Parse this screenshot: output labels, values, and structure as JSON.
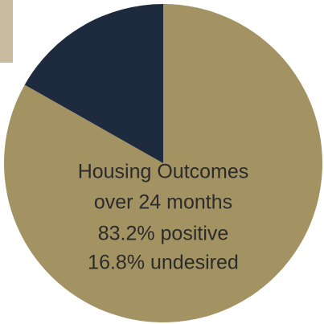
{
  "chart_data": {
    "type": "pie",
    "title": "Housing Outcomes",
    "subtitle": "over 24 months",
    "values": [
      83.2,
      16.8
    ],
    "value_labels": [
      "83.2% positive",
      "16.8% undesired"
    ],
    "colors": [
      "#a39363",
      "#1e2a3e"
    ]
  }
}
